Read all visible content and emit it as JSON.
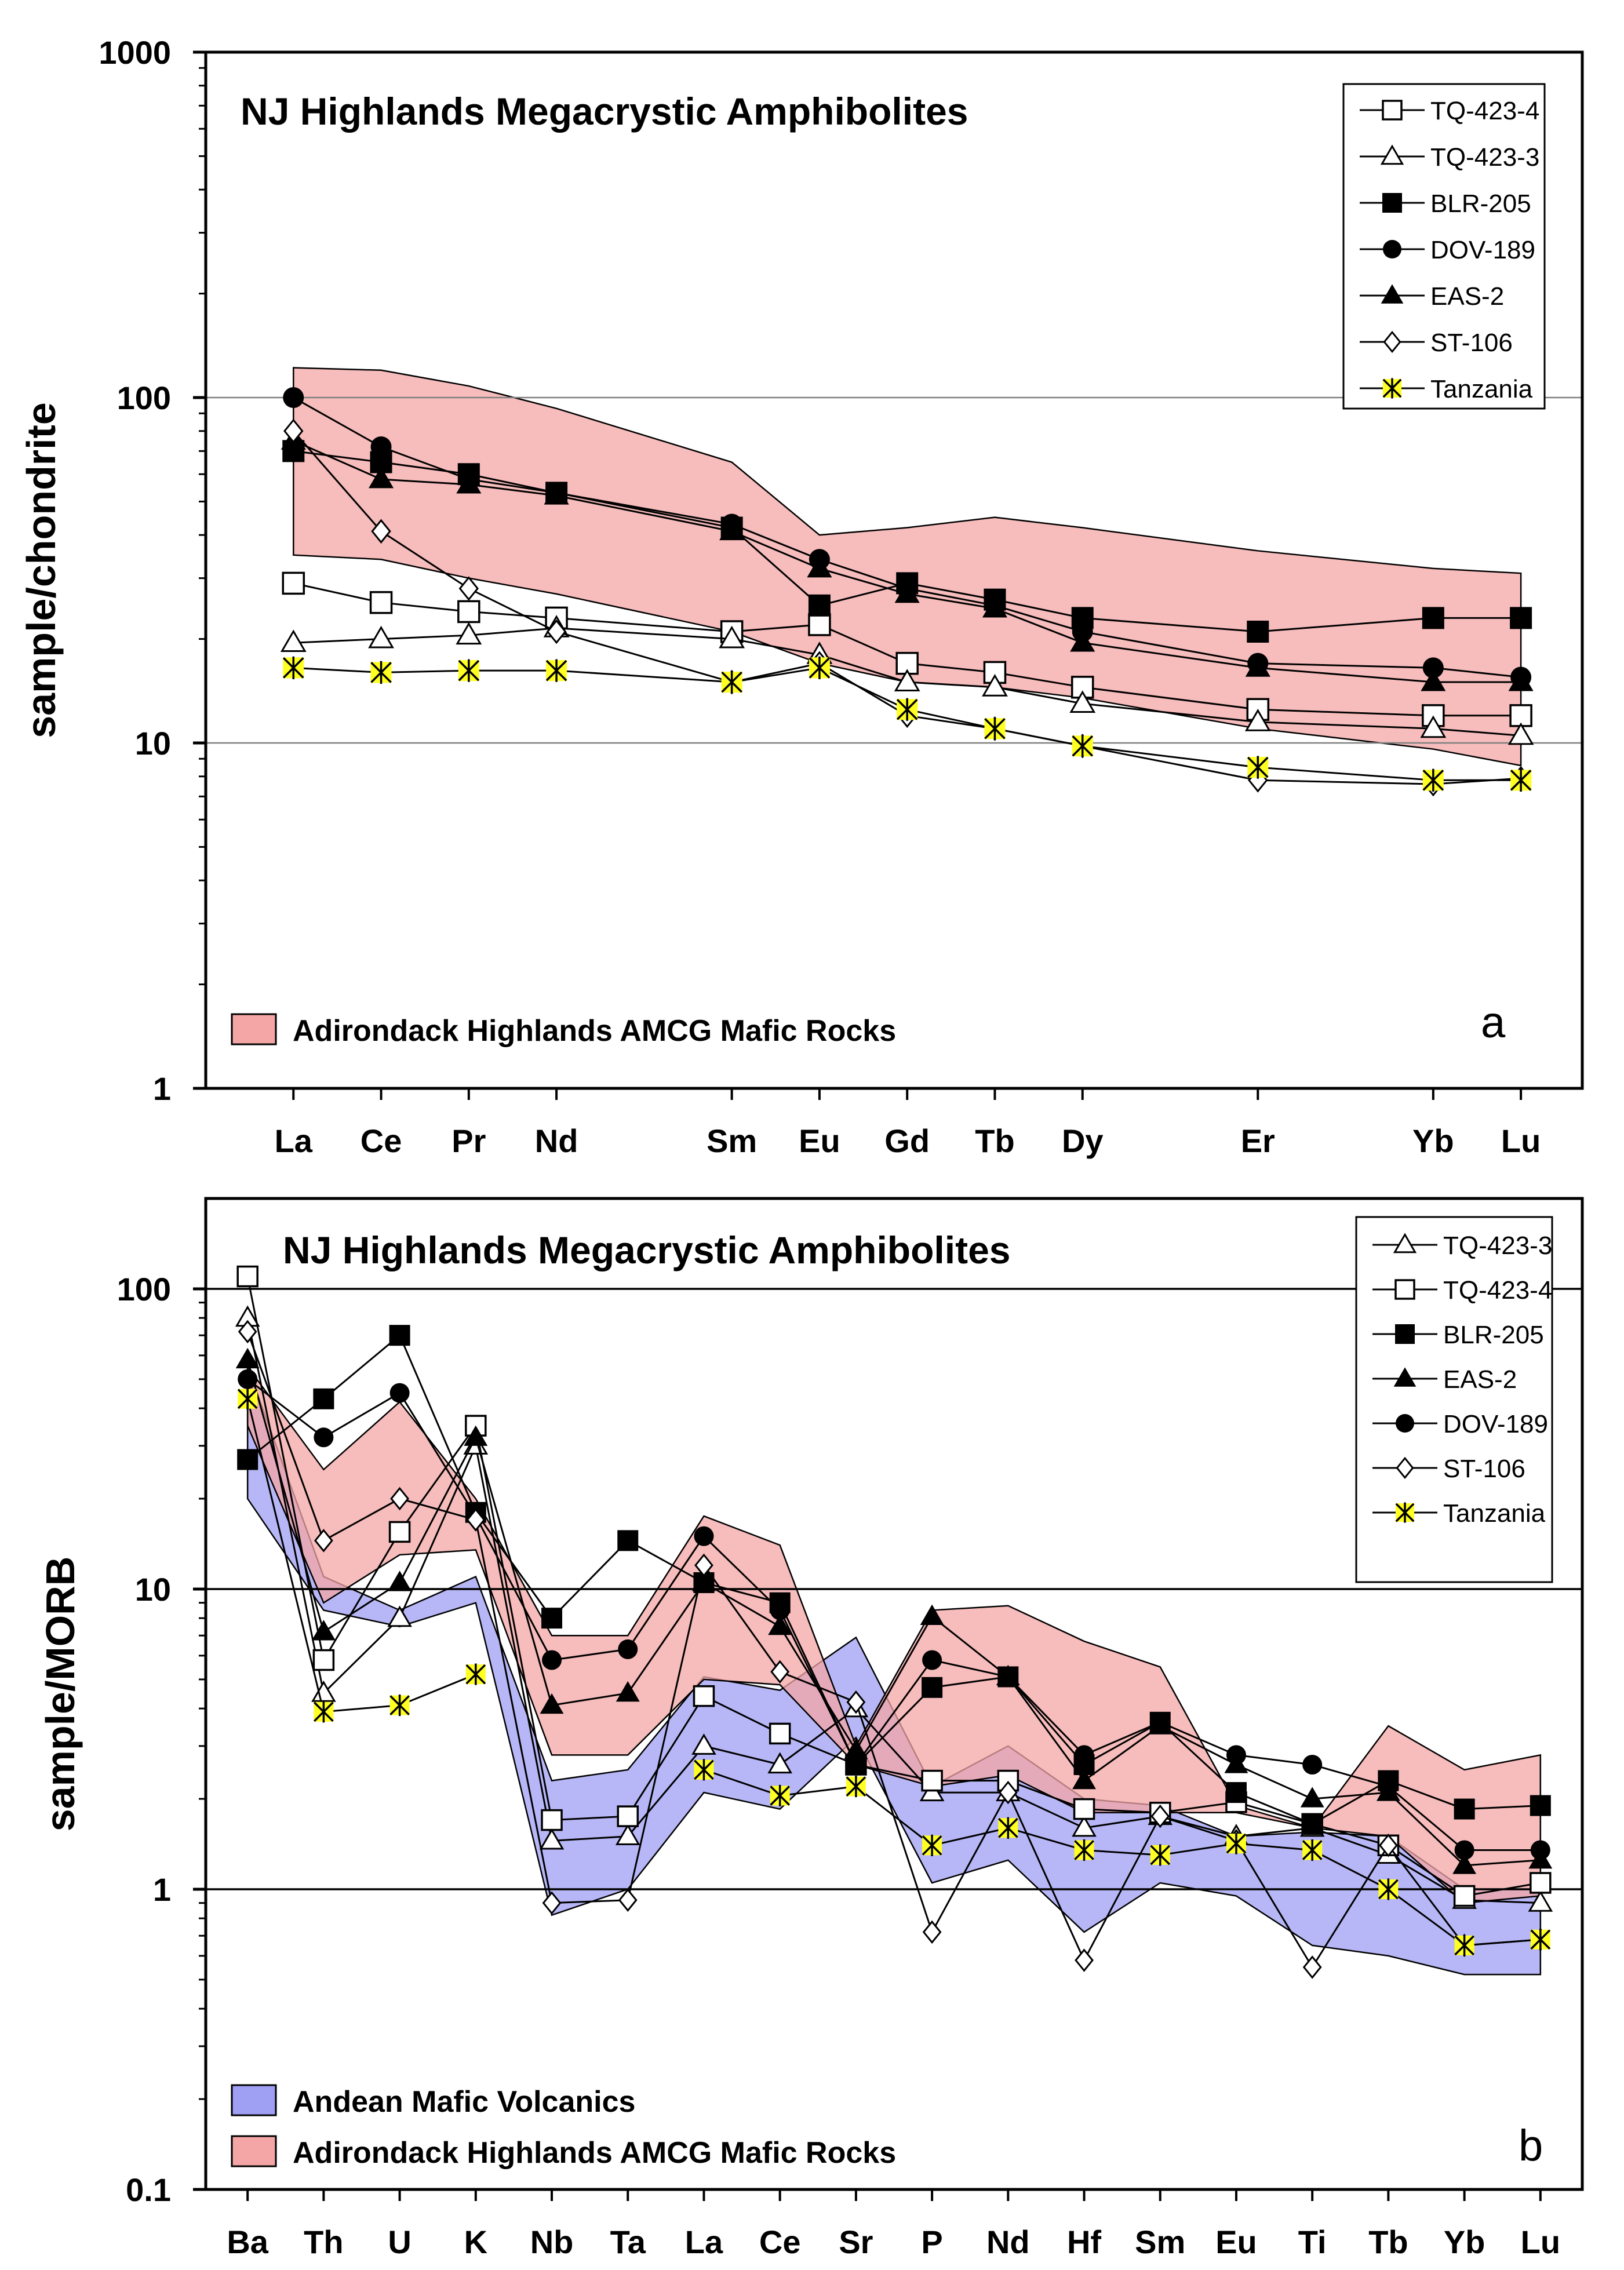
{
  "chart_data": [
    {
      "id": "a",
      "type": "line",
      "title": "NJ Highlands Megacrystic Amphibolites",
      "panel_letter": "a",
      "ylabel": "sample/chondrite",
      "xlabel": "",
      "yscale": "log",
      "ylim": [
        1,
        1000
      ],
      "yticks": [
        "1000",
        "100",
        "10",
        "1"
      ],
      "ytick_values": [
        1000,
        100,
        10,
        1
      ],
      "gridlines_at": [
        10,
        100
      ],
      "categories": [
        "La",
        "Ce",
        "Pr",
        "Nd",
        "Sm",
        "Eu",
        "Gd",
        "Tb",
        "Dy",
        "Er",
        "Yb",
        "Lu"
      ],
      "x_positions": [
        57,
        58,
        59,
        60,
        62,
        63,
        64,
        65,
        66,
        68,
        70,
        71
      ],
      "xlim": [
        56.0,
        71.7
      ],
      "legend_position": "top-right",
      "series": [
        {
          "name": "TQ-423-4",
          "marker": "square-open",
          "color": "#000000",
          "values": [
            29,
            25.5,
            24,
            23,
            21,
            22,
            17,
            16,
            14.5,
            12.5,
            12,
            12
          ]
        },
        {
          "name": "TQ-423-3",
          "marker": "triangle-open",
          "color": "#000000",
          "values": [
            19.5,
            20,
            20.5,
            21.5,
            20,
            18,
            15,
            14.5,
            13,
            11.5,
            11,
            10.5
          ]
        },
        {
          "name": "BLR-205",
          "marker": "square-filled",
          "color": "#000000",
          "values": [
            70,
            65,
            60,
            53,
            42,
            25,
            29,
            26,
            23,
            21,
            23,
            23
          ]
        },
        {
          "name": "DOV-189",
          "marker": "circle-filled",
          "color": "#000000",
          "values": [
            100,
            72,
            58,
            53,
            43,
            34,
            28,
            25,
            21,
            17,
            16.5,
            15.5
          ]
        },
        {
          "name": "EAS-2",
          "marker": "triangle-filled",
          "color": "#000000",
          "values": [
            75,
            58,
            56,
            52,
            41,
            32,
            27,
            24.5,
            19.5,
            16.5,
            15,
            15
          ]
        },
        {
          "name": "ST-106",
          "marker": "diamond-open",
          "color": "#000000",
          "values": [
            80,
            41,
            28,
            21,
            15,
            17,
            12,
            11,
            9.8,
            7.8,
            7.6,
            7.9
          ]
        },
        {
          "name": "Tanzania",
          "marker": "star-yellow",
          "color": "#d8d800",
          "values": [
            16.5,
            16,
            16.2,
            16.2,
            15,
            16.5,
            12.5,
            11,
            9.8,
            8.5,
            7.8,
            7.8
          ]
        }
      ],
      "bands": [
        {
          "label": "Adirondack Highlands AMCG Mafic Rocks",
          "fill": "#f4a5a5",
          "upper": [
            122,
            120,
            108,
            93,
            65,
            40,
            42,
            45,
            42,
            36,
            32,
            31
          ],
          "lower": [
            35,
            34,
            30,
            27,
            21,
            17,
            15,
            14.5,
            13.5,
            11,
            9.6,
            8.6
          ]
        }
      ]
    },
    {
      "id": "b",
      "type": "line",
      "title": "NJ Highlands Megacrystic Amphibolites",
      "panel_letter": "b",
      "ylabel": "sample/MORB",
      "xlabel": "",
      "yscale": "log",
      "ylim": [
        0.1,
        200
      ],
      "yticks": [
        "100",
        "10",
        "1",
        "0.1"
      ],
      "ytick_values": [
        100,
        10,
        1,
        0.1
      ],
      "gridlines_at": [
        1,
        10,
        100
      ],
      "categories": [
        "Ba",
        "Th",
        "U",
        "K",
        "Nb",
        "Ta",
        "La",
        "Ce",
        "Sr",
        "P",
        "Nd",
        "Hf",
        "Sm",
        "Eu",
        "Ti",
        "Tb",
        "Yb",
        "Lu"
      ],
      "x_positions": [
        1,
        2,
        3,
        4,
        5,
        6,
        7,
        8,
        9,
        10,
        11,
        12,
        13,
        14,
        15,
        16,
        17,
        18
      ],
      "xlim": [
        0.45,
        18.55
      ],
      "legend_position": "top-right",
      "series": [
        {
          "name": "TQ-423-3",
          "marker": "triangle-open",
          "color": "#000000",
          "values": [
            80,
            4.5,
            8,
            30,
            1.45,
            1.5,
            3,
            2.6,
            4,
            2.1,
            2.1,
            1.6,
            1.75,
            1.5,
            1.6,
            1.3,
            0.92,
            0.9
          ]
        },
        {
          "name": "TQ-423-4",
          "marker": "square-open",
          "color": "#000000",
          "values": [
            110,
            5.8,
            15.5,
            35,
            1.7,
            1.75,
            4.4,
            3.3,
            2.6,
            2.3,
            2.3,
            1.85,
            1.8,
            1.95,
            1.65,
            1.4,
            0.95,
            1.05
          ]
        },
        {
          "name": "BLR-205",
          "marker": "square-filled",
          "color": "#000000",
          "values": [
            27,
            43,
            70,
            18,
            8,
            14.5,
            10.5,
            9,
            2.6,
            4.7,
            5.1,
            2.6,
            3.6,
            2.1,
            1.65,
            2.3,
            1.85,
            1.9
          ]
        },
        {
          "name": "EAS-2",
          "marker": "triangle-filled",
          "color": "#000000",
          "values": [
            58,
            7.2,
            10.5,
            32,
            4.1,
            4.5,
            10.5,
            7.5,
            2.9,
            8.1,
            5.1,
            2.3,
            3.5,
            2.6,
            2.0,
            2.1,
            1.2,
            1.25
          ]
        },
        {
          "name": "DOV-189",
          "marker": "circle-filled",
          "color": "#000000",
          "values": [
            50,
            32,
            45,
            17.5,
            5.8,
            6.3,
            15,
            8.5,
            2.6,
            5.8,
            5.1,
            2.8,
            3.6,
            2.8,
            2.6,
            2.2,
            1.35,
            1.35
          ]
        },
        {
          "name": "ST-106",
          "marker": "diamond-open",
          "color": "#000000",
          "values": [
            72,
            14.5,
            20,
            17,
            0.9,
            0.92,
            12,
            5.3,
            4.2,
            0.72,
            2.1,
            0.58,
            1.75,
            1.45,
            0.55,
            1.4,
            0.65,
            0.68
          ]
        },
        {
          "name": "Tanzania",
          "marker": "star-yellow",
          "color": "#d8d800",
          "values": [
            43,
            3.9,
            4.1,
            5.2,
            null,
            null,
            2.5,
            2.05,
            2.2,
            1.4,
            1.6,
            1.35,
            1.3,
            1.42,
            1.35,
            1.0,
            0.65,
            0.68
          ]
        }
      ],
      "bands": [
        {
          "label": "Andean Mafic Volcanics",
          "fill": "#9f9ff4",
          "upper": [
            55,
            11,
            8.5,
            11,
            2.3,
            2.5,
            5.1,
            4.6,
            6.9,
            2.2,
            3.0,
            2.0,
            1.9,
            1.5,
            1.55,
            1.5,
            1.0,
            1.0
          ],
          "lower": [
            20,
            8.5,
            7.5,
            9,
            0.82,
            1.0,
            2.1,
            1.85,
            3.2,
            1.05,
            1.25,
            0.72,
            1.05,
            0.95,
            0.65,
            0.6,
            0.52,
            0.52
          ]
        },
        {
          "label": "Adirondack Highlands AMCG Mafic Rocks",
          "fill": "#f4a5a5",
          "upper": [
            55,
            25,
            42,
            20,
            7,
            7,
            17.5,
            14,
            3.0,
            8.5,
            8.8,
            6.7,
            5.5,
            1.9,
            1.6,
            3.5,
            2.5,
            2.8
          ],
          "lower": [
            35,
            9,
            13,
            13.5,
            2.8,
            2.8,
            5,
            4.8,
            2.6,
            2.2,
            2.4,
            1.8,
            1.8,
            1.8,
            1.6,
            1.5,
            0.9,
            0.95
          ]
        }
      ]
    }
  ]
}
